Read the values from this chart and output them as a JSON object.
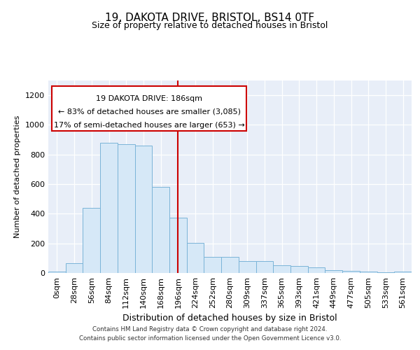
{
  "title": "19, DAKOTA DRIVE, BRISTOL, BS14 0TF",
  "subtitle": "Size of property relative to detached houses in Bristol",
  "xlabel": "Distribution of detached houses by size in Bristol",
  "ylabel": "Number of detached properties",
  "bin_labels": [
    "0sqm",
    "28sqm",
    "56sqm",
    "84sqm",
    "112sqm",
    "140sqm",
    "168sqm",
    "196sqm",
    "224sqm",
    "252sqm",
    "280sqm",
    "309sqm",
    "337sqm",
    "365sqm",
    "393sqm",
    "421sqm",
    "449sqm",
    "477sqm",
    "505sqm",
    "533sqm",
    "561sqm"
  ],
  "bar_heights": [
    10,
    65,
    440,
    880,
    870,
    860,
    580,
    375,
    205,
    110,
    110,
    80,
    80,
    50,
    45,
    40,
    18,
    15,
    8,
    5,
    10
  ],
  "bar_color": "#d6e8f7",
  "bar_edge_color": "#7ab4d8",
  "vline_x": 7,
  "vline_color": "#cc0000",
  "annotation_line1": "19 DAKOTA DRIVE: 186sqm",
  "annotation_line2": "← 83% of detached houses are smaller (3,085)",
  "annotation_line3": "17% of semi-detached houses are larger (653) →",
  "footer": "Contains HM Land Registry data © Crown copyright and database right 2024.\nContains public sector information licensed under the Open Government Licence v3.0.",
  "fig_bg_color": "#ffffff",
  "plot_bg_color": "#e8eef8",
  "ylim": [
    0,
    1300
  ],
  "yticks": [
    0,
    200,
    400,
    600,
    800,
    1000,
    1200
  ]
}
